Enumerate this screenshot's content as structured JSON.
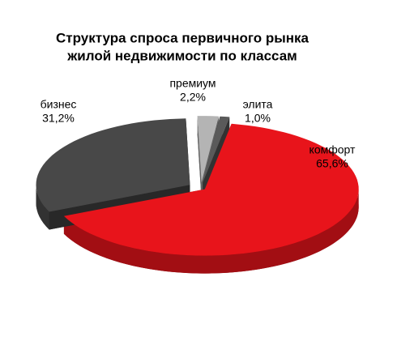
{
  "chart_data": {
    "type": "pie3d",
    "title": [
      "Структура спроса первичного рынка",
      "жилой недвижимости по классам"
    ],
    "categories": [
      "комфорт",
      "бизнес",
      "премиум",
      "элита"
    ],
    "values": [
      65.6,
      31.2,
      2.2,
      1.0
    ],
    "value_labels": [
      "65,6%",
      "31,2%",
      "2,2%",
      "1,0%"
    ],
    "colors": [
      "#e8141b",
      "#484848",
      "#b4b4b4",
      "#5a5a5a"
    ]
  }
}
